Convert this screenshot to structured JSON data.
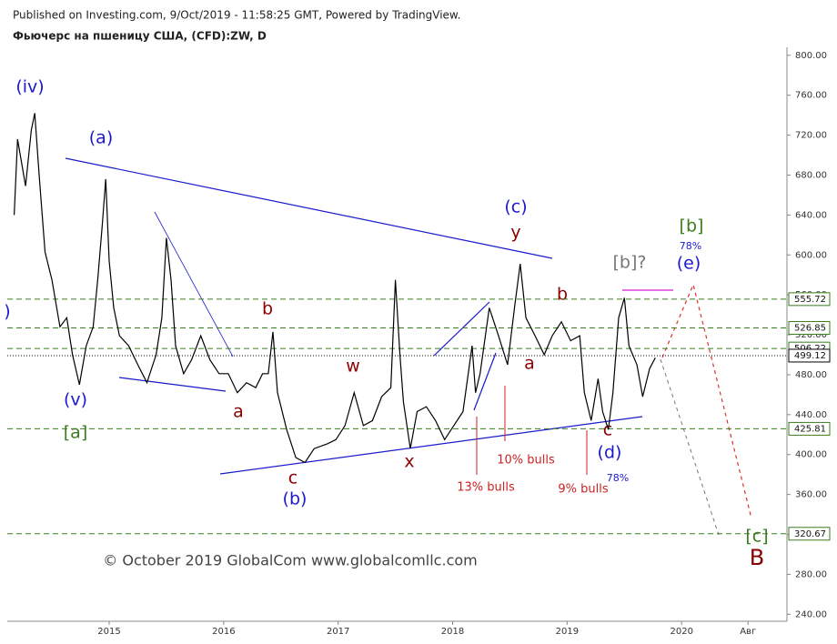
{
  "chart_data": {
    "type": "line",
    "header": "Published on Investing.com, 9/Oct/2019 - 11:58:25 GMT, Powered by TradingView.",
    "title": "Фьючерс на пшеницу США, (CFD):ZW, D",
    "color": "#000000",
    "x": [
      2014.17,
      2014.2,
      2014.27,
      2014.32,
      2014.35,
      2014.39,
      2014.44,
      2014.5,
      2014.57,
      2014.63,
      2014.68,
      2014.74,
      2014.8,
      2014.86,
      2014.9,
      2014.94,
      2014.97,
      2015.0,
      2015.04,
      2015.09,
      2015.17,
      2015.25,
      2015.33,
      2015.41,
      2015.46,
      2015.5,
      2015.54,
      2015.58,
      2015.65,
      2015.72,
      2015.8,
      2015.88,
      2015.96,
      2016.04,
      2016.12,
      2016.2,
      2016.28,
      2016.34,
      2016.39,
      2016.43,
      2016.47,
      2016.55,
      2016.63,
      2016.71,
      2016.79,
      2016.91,
      2016.98,
      2017.06,
      2017.14,
      2017.22,
      2017.3,
      2017.38,
      2017.46,
      2017.5,
      2017.54,
      2017.57,
      2017.63,
      2017.69,
      2017.77,
      2017.85,
      2017.93,
      2018.01,
      2018.09,
      2018.17,
      2018.2,
      2018.24,
      2018.32,
      2018.4,
      2018.48,
      2018.54,
      2018.59,
      2018.64,
      2018.72,
      2018.8,
      2018.87,
      2018.95,
      2019.03,
      2019.11,
      2019.15,
      2019.21,
      2019.27,
      2019.31,
      2019.36,
      2019.4,
      2019.45,
      2019.5,
      2019.54,
      2019.61,
      2019.66,
      2019.72,
      2019.77
    ],
    "values": [
      640,
      716,
      669,
      725,
      742,
      678,
      603,
      575,
      528,
      537,
      500,
      470,
      509,
      528,
      575,
      631,
      676,
      594,
      547,
      519,
      509,
      490,
      472,
      500,
      537,
      617,
      575,
      509,
      481,
      495,
      519,
      495,
      481,
      481,
      462,
      472,
      467,
      481,
      481,
      523,
      462,
      425,
      397,
      392,
      406,
      411,
      415,
      429,
      462,
      429,
      434,
      458,
      467,
      575,
      500,
      453,
      406,
      443,
      448,
      434,
      415,
      429,
      443,
      509,
      462,
      481,
      547,
      519,
      490,
      547,
      591,
      537,
      519,
      500,
      519,
      533,
      514,
      519,
      462,
      434,
      476,
      443,
      425,
      462,
      537,
      557,
      509,
      490,
      458,
      486,
      497
    ],
    "levels": [
      555.72,
      526.85,
      506.22,
      425.81,
      320.67
    ],
    "last_price": 499.12,
    "xlim": [
      2014.11,
      2020.92
    ],
    "ylim": [
      233,
      808
    ],
    "yticks": [
      {
        "value": 240,
        "label": "240.00"
      },
      {
        "value": 280,
        "label": "280.00"
      },
      {
        "value": 320,
        "label": "320.00"
      },
      {
        "value": 360,
        "label": "360.00"
      },
      {
        "value": 400,
        "label": "400.00"
      },
      {
        "value": 440,
        "label": "440.00"
      },
      {
        "value": 480,
        "label": "480.00"
      },
      {
        "value": 520,
        "label": "520.00"
      },
      {
        "value": 560,
        "label": "560.00"
      },
      {
        "value": 600,
        "label": "600.00"
      },
      {
        "value": 640,
        "label": "640.00"
      },
      {
        "value": 680,
        "label": "680.00"
      },
      {
        "value": 720,
        "label": "720.00"
      },
      {
        "value": 760,
        "label": "760.00"
      },
      {
        "value": 800,
        "label": "800.00"
      }
    ],
    "xticks": [
      2015,
      2016,
      2017,
      2018,
      2019,
      2020,
      {
        "value": 2020.58,
        "label": "Авг"
      }
    ],
    "annotations": [
      "(iv)",
      "(a)",
      "(v)",
      "[a]",
      ")",
      "b",
      "a",
      "w",
      "c",
      "(b)",
      "x",
      "(c)",
      "y",
      "b",
      "a",
      "[b]?",
      "[b]",
      "78%",
      "(e)",
      "10% bulls",
      "13% bulls",
      "9% bulls",
      "c",
      "(d)",
      "78%",
      "[c]",
      "B",
      "© October 2019 GlobalCom www.globalcomllc.com"
    ]
  }
}
